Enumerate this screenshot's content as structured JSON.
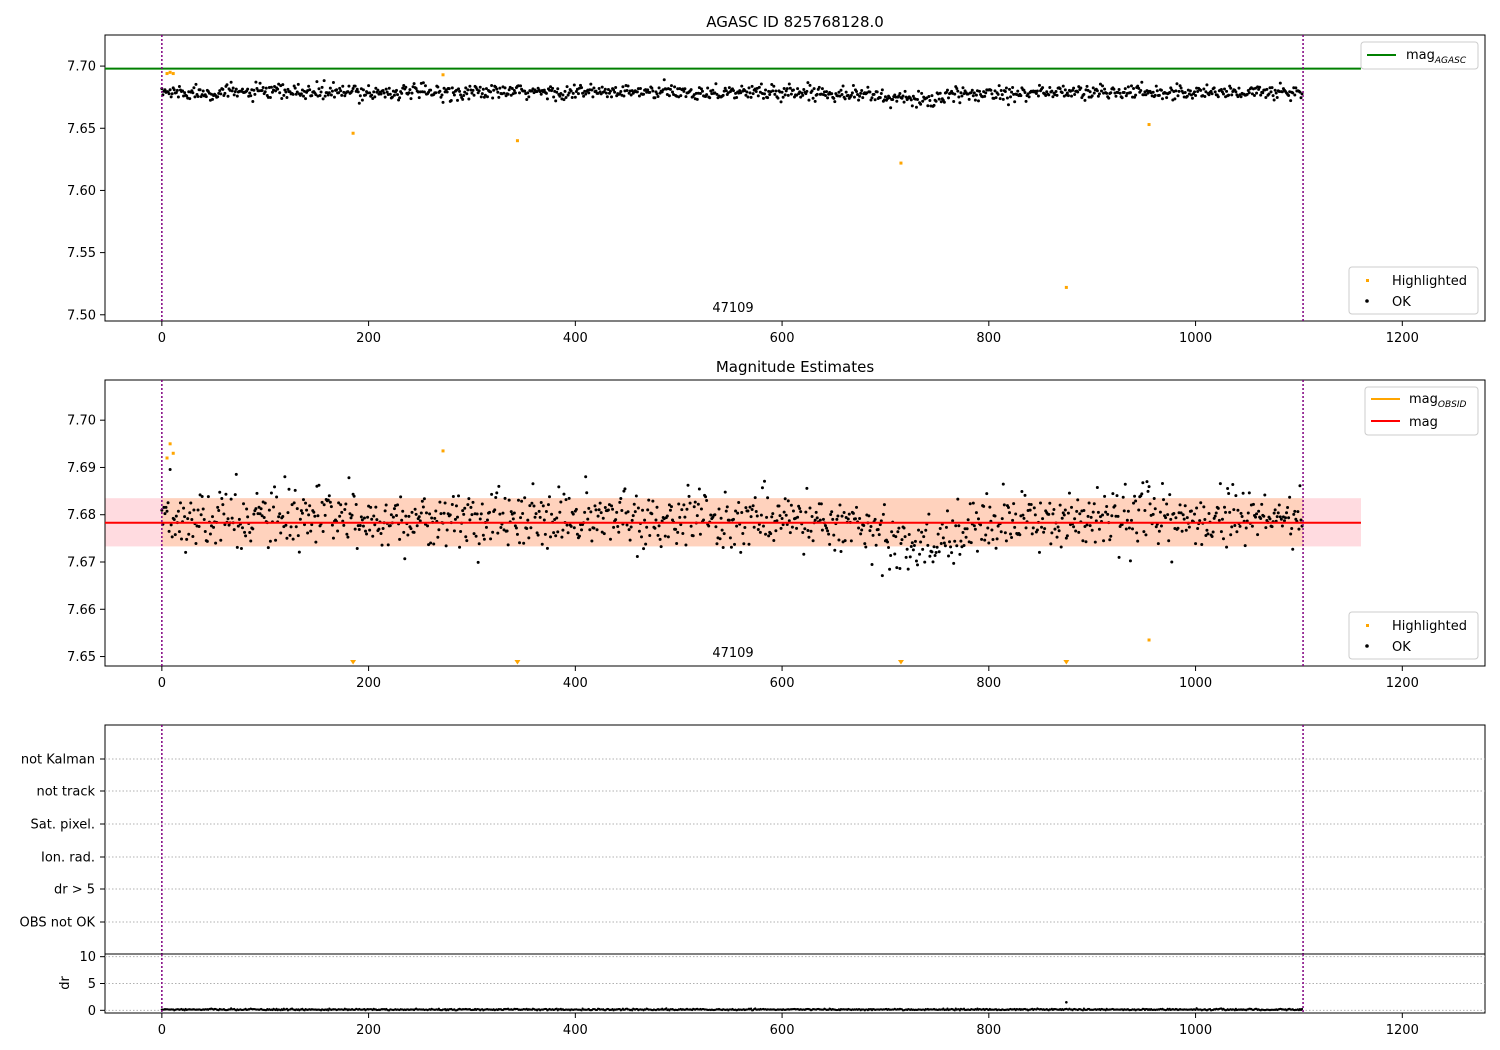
{
  "colors": {
    "ok": "#000000",
    "highlighted": "#ffa500",
    "agasc_line": "#008000",
    "mag_line": "#ff0000",
    "obsid_line": "#ffa500",
    "band_fill": "#ffb0bb",
    "band_fill2": "#ffcaa0",
    "obs_marker": "#800080",
    "grid": "#b0b0b0"
  },
  "chart_data": [
    {
      "type": "scatter",
      "title": "AGASC ID 825768128.0",
      "xlabel": "",
      "ylabel": "",
      "xlim": [
        -55,
        1280
      ],
      "ylim": [
        7.495,
        7.725
      ],
      "xticks": [
        0,
        200,
        400,
        600,
        800,
        1000,
        1200
      ],
      "yticks": [
        "7.50",
        "7.55",
        "7.60",
        "7.65",
        "7.70"
      ],
      "ytick_values": [
        7.5,
        7.55,
        7.6,
        7.65,
        7.7
      ],
      "obs_boundaries": [
        0,
        1104
      ],
      "obs_label": {
        "text": "47109",
        "x": 552
      },
      "hline": {
        "name": "mag",
        "subscript": "AGASC",
        "y": 7.698,
        "x_end": 1160
      },
      "ok_series": {
        "name": "OK",
        "n": 1104,
        "base": 7.679,
        "scatter": 0.0055,
        "dip_center": 730,
        "dip_depth": 0.006,
        "dip_width": 45
      },
      "highlighted": {
        "name": "Highlighted",
        "x": [
          5,
          8,
          11,
          185,
          272,
          344,
          715,
          875,
          955
        ],
        "y": [
          7.694,
          7.695,
          7.694,
          7.646,
          7.693,
          7.64,
          7.622,
          7.522,
          7.653
        ]
      },
      "legend_top": [
        "mag_AGASC"
      ],
      "legend_bottom": [
        "Highlighted",
        "OK"
      ]
    },
    {
      "type": "scatter",
      "title": "Magnitude Estimates",
      "xlabel": "",
      "ylabel": "",
      "xlim": [
        -55,
        1280
      ],
      "ylim": [
        7.648,
        7.7085
      ],
      "xticks": [
        0,
        200,
        400,
        600,
        800,
        1000,
        1200
      ],
      "yticks": [
        "7.65",
        "7.66",
        "7.67",
        "7.68",
        "7.69",
        "7.70"
      ],
      "ytick_values": [
        7.65,
        7.66,
        7.67,
        7.68,
        7.69,
        7.7
      ],
      "obs_boundaries": [
        0,
        1104
      ],
      "obs_label": {
        "text": "47109",
        "x": 552
      },
      "mag_line": {
        "name": "mag",
        "y": 7.6783,
        "x_end": 1160
      },
      "obsid_line": {
        "name": "mag",
        "subscript": "OBSID",
        "y": 7.6783
      },
      "band": [
        7.6733,
        7.6835
      ],
      "ok_series": {
        "name": "OK",
        "n": 1104,
        "base": 7.679,
        "scatter": 0.0055,
        "dip_center": 730,
        "dip_depth": 0.006,
        "dip_width": 45
      },
      "highlighted": {
        "name": "Highlighted",
        "x": [
          5,
          8,
          11,
          272,
          955
        ],
        "y": [
          7.692,
          7.695,
          7.693,
          7.6935,
          7.6535
        ]
      },
      "out_of_range_low": [
        185,
        344,
        715,
        875
      ],
      "legend_top": [
        "mag_OBSID",
        "mag"
      ],
      "legend_bottom": [
        "Highlighted",
        "OK"
      ]
    },
    {
      "type": "table",
      "title": "",
      "flags": [
        "not Kalman",
        "not track",
        "Sat. pixel.",
        "Ion. rad.",
        "dr > 5",
        "OBS not OK"
      ],
      "obs_boundaries": [
        0,
        1104
      ],
      "xlim": [
        -55,
        1280
      ]
    },
    {
      "type": "scatter",
      "title": "",
      "xlabel": "",
      "ylabel": "dr",
      "xlim": [
        -55,
        1280
      ],
      "ylim": [
        -0.5,
        10.5
      ],
      "xticks": [
        0,
        200,
        400,
        600,
        800,
        1000,
        1200
      ],
      "yticks": [
        "0",
        "5",
        "10"
      ],
      "ytick_values": [
        0,
        5,
        10
      ],
      "obs_boundaries": [
        0,
        1104
      ],
      "dr_series": {
        "n": 1104,
        "base": 0.15,
        "scatter": 0.12,
        "outlier_x": 875,
        "outlier_y": 1.5
      }
    }
  ]
}
